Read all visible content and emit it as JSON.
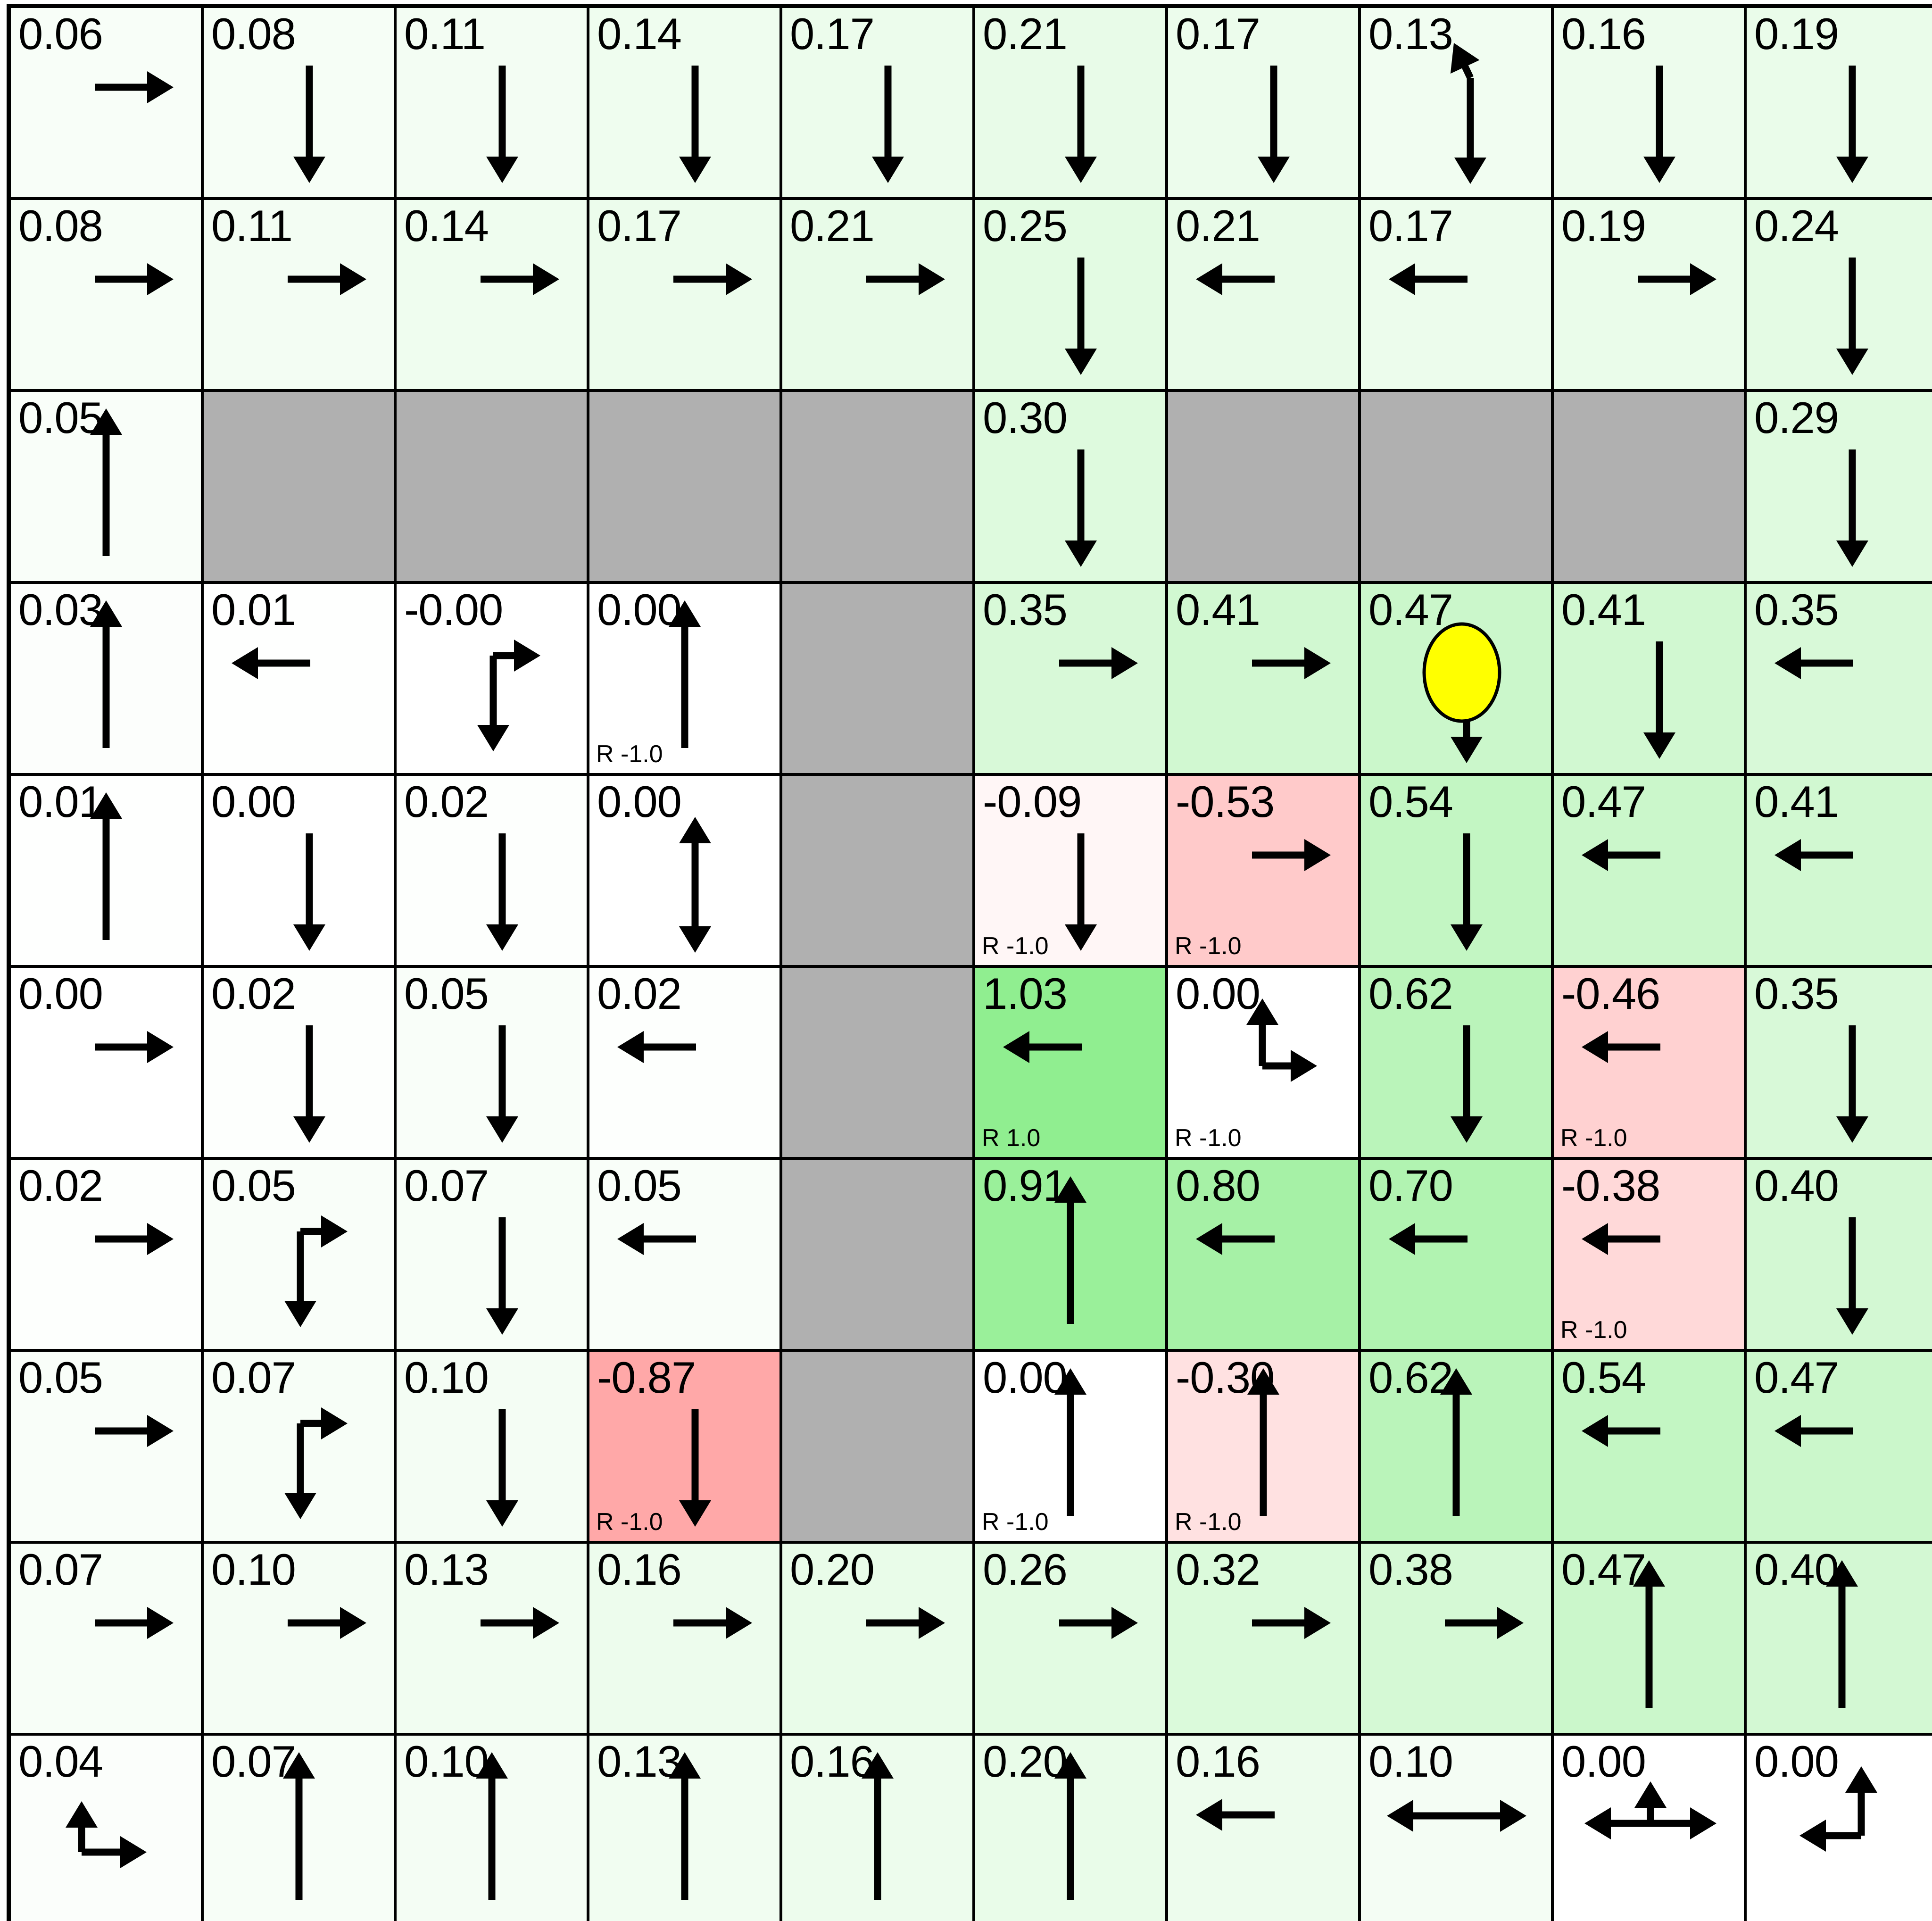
{
  "grid": {
    "rows": 10,
    "cols": 10,
    "colors": {
      "wall": "#b0b0b0",
      "grid_line": "#000000",
      "text": "#000000",
      "agent_fill": "#ffff00",
      "agent_stroke": "#000000",
      "positive_max": "#90ee90",
      "negative_max": "#ffa8a8"
    },
    "reward_positive_label": "R 1.0",
    "reward_negative_label": "R -1.0",
    "cells": [
      {
        "v": "0.06",
        "a": "right",
        "bg": "#f8fef8"
      },
      {
        "v": "0.08",
        "a": "down",
        "bg": "#f6fef6"
      },
      {
        "v": "0.11",
        "a": "down",
        "bg": "#f3fdf3"
      },
      {
        "v": "0.14",
        "a": "down",
        "bg": "#effdef"
      },
      {
        "v": "0.17",
        "a": "down",
        "bg": "#ecfcec"
      },
      {
        "v": "0.21",
        "a": "down",
        "bg": "#e8fbe8"
      },
      {
        "v": "0.17",
        "a": "down",
        "bg": "#ecfcec"
      },
      {
        "v": "0.13",
        "a": "down-upleft",
        "bg": "#f1fdf1"
      },
      {
        "v": "0.16",
        "a": "down",
        "bg": "#edfced"
      },
      {
        "v": "0.19",
        "a": "down",
        "bg": "#eafcea"
      },
      {
        "v": "0.08",
        "a": "right",
        "bg": "#f6fef6"
      },
      {
        "v": "0.11",
        "a": "right",
        "bg": "#f3fdf3"
      },
      {
        "v": "0.14",
        "a": "right",
        "bg": "#effdef"
      },
      {
        "v": "0.17",
        "a": "right",
        "bg": "#ecfcec"
      },
      {
        "v": "0.21",
        "a": "right",
        "bg": "#e8fbe8"
      },
      {
        "v": "0.25",
        "a": "down",
        "bg": "#e3fbe3"
      },
      {
        "v": "0.21",
        "a": "left",
        "bg": "#e8fbe8"
      },
      {
        "v": "0.17",
        "a": "left",
        "bg": "#ecfcec"
      },
      {
        "v": "0.19",
        "a": "right",
        "bg": "#eafcea"
      },
      {
        "v": "0.24",
        "a": "down",
        "bg": "#e4fbe4"
      },
      {
        "v": "0.05",
        "a": "up",
        "bg": "#f9fef9"
      },
      {
        "wall": true
      },
      {
        "wall": true
      },
      {
        "wall": true
      },
      {
        "wall": true
      },
      {
        "v": "0.30",
        "a": "down",
        "bg": "#defade"
      },
      {
        "wall": true
      },
      {
        "wall": true
      },
      {
        "wall": true
      },
      {
        "v": "0.29",
        "a": "down",
        "bg": "#dffadf"
      },
      {
        "v": "0.03",
        "a": "up",
        "bg": "#fcfefc"
      },
      {
        "v": "0.01",
        "a": "left",
        "bg": "#fefffe"
      },
      {
        "v": "-0.00",
        "a": "down-right",
        "bg": "#ffffff"
      },
      {
        "v": "0.00",
        "a": "up",
        "r": "R -1.0",
        "bg": "#ffffff"
      },
      {
        "wall": true
      },
      {
        "v": "0.35",
        "a": "right",
        "bg": "#d8f9d8"
      },
      {
        "v": "0.41",
        "a": "right",
        "bg": "#d1f8d1"
      },
      {
        "v": "0.47",
        "a": "agent-down",
        "agent": true,
        "bg": "#cbf7cb"
      },
      {
        "v": "0.41",
        "a": "down",
        "bg": "#d1f8d1"
      },
      {
        "v": "0.35",
        "a": "left",
        "bg": "#d8f9d8"
      },
      {
        "v": "0.01",
        "a": "up",
        "bg": "#fefffe"
      },
      {
        "v": "0.00",
        "a": "down",
        "bg": "#ffffff"
      },
      {
        "v": "0.02",
        "a": "down",
        "bg": "#fdfffd"
      },
      {
        "v": "0.00",
        "a": "updown",
        "bg": "#ffffff"
      },
      {
        "wall": true
      },
      {
        "v": "-0.09",
        "a": "down",
        "r": "R -1.0",
        "bg": "#fff6f6"
      },
      {
        "v": "-0.53",
        "a": "right",
        "r": "R -1.0",
        "bg": "#ffcaca"
      },
      {
        "v": "0.54",
        "a": "down",
        "bg": "#c3f6c3"
      },
      {
        "v": "0.47",
        "a": "left",
        "bg": "#cbf7cb"
      },
      {
        "v": "0.41",
        "a": "left",
        "bg": "#d1f8d1"
      },
      {
        "v": "0.00",
        "a": "right",
        "bg": "#ffffff"
      },
      {
        "v": "0.02",
        "a": "down",
        "bg": "#fdfffd"
      },
      {
        "v": "0.05",
        "a": "down",
        "bg": "#f9fef9"
      },
      {
        "v": "0.02",
        "a": "left",
        "bg": "#fdfffd"
      },
      {
        "wall": true
      },
      {
        "v": "1.03",
        "a": "left",
        "r": "R 1.0",
        "bg": "#90ee90"
      },
      {
        "v": "0.00",
        "a": "up-right",
        "r": "R -1.0",
        "bg": "#ffffff"
      },
      {
        "v": "0.62",
        "a": "down",
        "bg": "#baf4ba"
      },
      {
        "v": "-0.46",
        "a": "left",
        "r": "R -1.0",
        "bg": "#ffd1d1"
      },
      {
        "v": "0.35",
        "a": "down",
        "bg": "#d8f9d8"
      },
      {
        "v": "0.02",
        "a": "right",
        "bg": "#fdfffd"
      },
      {
        "v": "0.05",
        "a": "down-right",
        "bg": "#f9fef9"
      },
      {
        "v": "0.07",
        "a": "down",
        "bg": "#f7fef7"
      },
      {
        "v": "0.05",
        "a": "left",
        "bg": "#f9fef9"
      },
      {
        "wall": true
      },
      {
        "v": "0.91",
        "a": "up",
        "bg": "#9af09a"
      },
      {
        "v": "0.80",
        "a": "left",
        "bg": "#a6f1a6"
      },
      {
        "v": "0.70",
        "a": "left",
        "bg": "#b1f3b1"
      },
      {
        "v": "-0.38",
        "a": "left",
        "r": "R -1.0",
        "bg": "#ffd9d9"
      },
      {
        "v": "0.40",
        "a": "down",
        "bg": "#d3f8d3"
      },
      {
        "v": "0.05",
        "a": "right",
        "bg": "#f9fef9"
      },
      {
        "v": "0.07",
        "a": "down-right",
        "bg": "#f7fef7"
      },
      {
        "v": "0.10",
        "a": "down",
        "bg": "#f4fdf4"
      },
      {
        "v": "-0.87",
        "a": "down",
        "r": "R -1.0",
        "bg": "#ffa8a8"
      },
      {
        "wall": true
      },
      {
        "v": "0.00",
        "a": "up",
        "r": "R -1.0",
        "bg": "#ffffff"
      },
      {
        "v": "-0.30",
        "a": "up",
        "r": "R -1.0",
        "bg": "#ffe1e1"
      },
      {
        "v": "0.62",
        "a": "up",
        "bg": "#baf4ba"
      },
      {
        "v": "0.54",
        "a": "left",
        "bg": "#c3f6c3"
      },
      {
        "v": "0.47",
        "a": "left",
        "bg": "#cbf7cb"
      },
      {
        "v": "0.07",
        "a": "right",
        "bg": "#f7fef7"
      },
      {
        "v": "0.10",
        "a": "right",
        "bg": "#f4fdf4"
      },
      {
        "v": "0.13",
        "a": "right",
        "bg": "#f1fdf1"
      },
      {
        "v": "0.16",
        "a": "right",
        "bg": "#edfced"
      },
      {
        "v": "0.20",
        "a": "right",
        "bg": "#e9fce9"
      },
      {
        "v": "0.26",
        "a": "right",
        "bg": "#e2fbe2"
      },
      {
        "v": "0.32",
        "a": "right",
        "bg": "#dbfadb"
      },
      {
        "v": "0.38",
        "a": "right",
        "bg": "#d5f9d5"
      },
      {
        "v": "0.47",
        "a": "up",
        "bg": "#cbf7cb"
      },
      {
        "v": "0.40",
        "a": "up",
        "bg": "#d3f8d3"
      },
      {
        "v": "0.04",
        "a": "up-right-elbow",
        "bg": "#fbfefb"
      },
      {
        "v": "0.07",
        "a": "up",
        "bg": "#f7fef7"
      },
      {
        "v": "0.10",
        "a": "up",
        "bg": "#f4fdf4"
      },
      {
        "v": "0.13",
        "a": "up",
        "bg": "#f1fdf1"
      },
      {
        "v": "0.16",
        "a": "up",
        "bg": "#edfced"
      },
      {
        "v": "0.20",
        "a": "up",
        "bg": "#e9fce9"
      },
      {
        "v": "0.16",
        "a": "left",
        "bg": "#edfced"
      },
      {
        "v": "0.10",
        "a": "leftright",
        "bg": "#f4fdf4"
      },
      {
        "v": "0.00",
        "a": "leftright-up",
        "bg": "#ffffff"
      },
      {
        "v": "0.00",
        "a": "up-left",
        "bg": "#ffffff"
      }
    ]
  }
}
